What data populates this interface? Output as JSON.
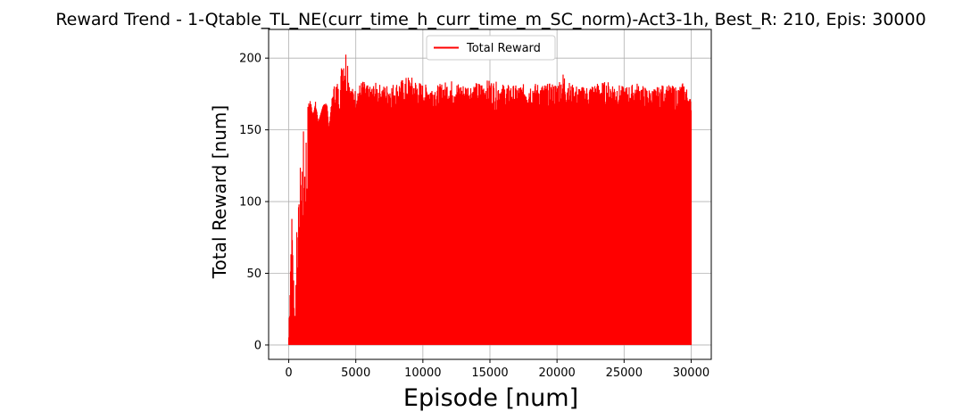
{
  "chart_data": {
    "type": "line",
    "title": "Reward Trend - 1-Qtable_TL_NE(curr_time_h_curr_time_m_SC_norm)-Act3-1h, Best_R: 210, Epis: 30000",
    "xlabel": "Episode [num]",
    "ylabel": "Total Reward [num]",
    "xlim": [
      -1500,
      31500
    ],
    "ylim": [
      -10,
      220
    ],
    "x_ticks": [
      0,
      5000,
      10000,
      15000,
      20000,
      25000,
      30000
    ],
    "y_ticks": [
      0,
      50,
      100,
      150,
      200
    ],
    "grid": true,
    "legend_position": "top-center",
    "series": [
      {
        "name": "Total Reward",
        "color": "#ff0000",
        "min_value": 0,
        "envelope_x": [
          0,
          100,
          200,
          300,
          400,
          500,
          600,
          700,
          800,
          900,
          1000,
          1100,
          1200,
          1400,
          1600,
          1800,
          2000,
          2200,
          2500,
          2800,
          3000,
          3300,
          3600,
          3800,
          4000,
          4200,
          4400,
          4600,
          5000,
          5500,
          6000,
          6500,
          7000,
          8000,
          9000,
          10000,
          11000,
          12000,
          13000,
          14000,
          15000,
          16000,
          17000,
          18000,
          19000,
          20000,
          20500,
          21000,
          22000,
          23000,
          24000,
          25000,
          26000,
          27000,
          28000,
          29000,
          29500,
          30000
        ],
        "envelope_y": [
          7,
          58,
          95,
          88,
          30,
          25,
          100,
          98,
          100,
          140,
          142,
          150,
          149,
          165,
          173,
          160,
          170,
          155,
          165,
          175,
          150,
          180,
          185,
          175,
          209,
          210,
          205,
          180,
          178,
          185,
          180,
          183,
          181,
          183,
          188,
          182,
          181,
          185,
          182,
          183,
          185,
          182,
          181,
          183,
          182,
          183,
          191,
          182,
          180,
          183,
          184,
          180,
          183,
          178,
          182,
          180,
          184,
          170
        ],
        "base_y": 162
      }
    ]
  }
}
